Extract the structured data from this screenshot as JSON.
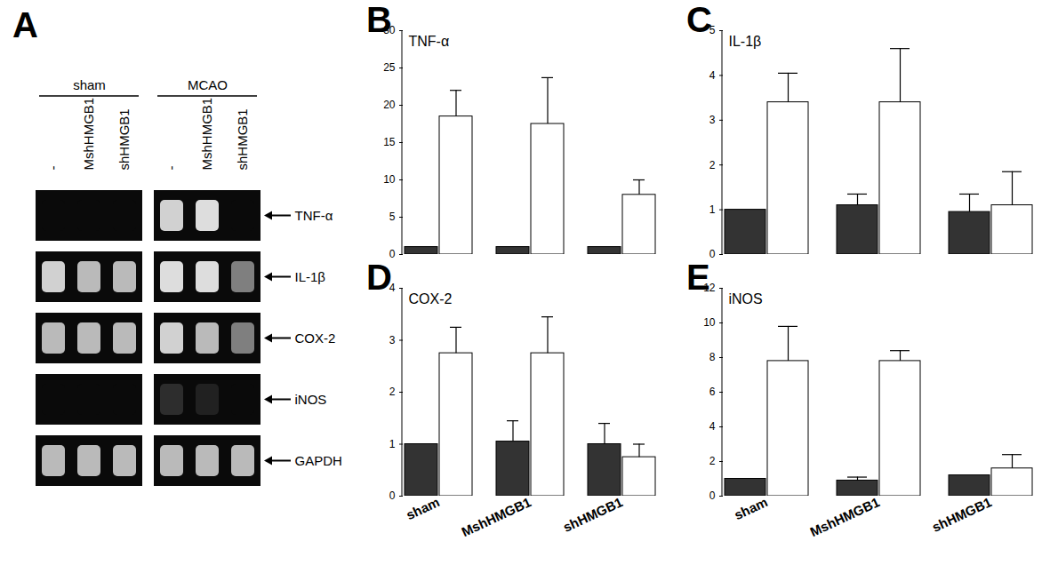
{
  "chart_data": [
    {
      "type": "gel",
      "panel": "A",
      "groups": [
        "sham",
        "MCAO"
      ],
      "lanes": [
        "-",
        "MshHMGB1",
        "shHMGB1"
      ],
      "rows": [
        "TNF-α",
        "IL-1β",
        "COX-2",
        "iNOS",
        "GAPDH"
      ],
      "intensity": [
        [
          [
            0,
            0,
            0
          ],
          [
            0.85,
            0.9,
            0
          ]
        ],
        [
          [
            0.85,
            0.75,
            0.75
          ],
          [
            0.9,
            0.9,
            0.5
          ]
        ],
        [
          [
            0.75,
            0.75,
            0.75
          ],
          [
            0.85,
            0.75,
            0.5
          ]
        ],
        [
          [
            0,
            0,
            0
          ],
          [
            0.15,
            0.1,
            0
          ]
        ],
        [
          [
            0.75,
            0.75,
            0.75
          ],
          [
            0.75,
            0.75,
            0.75
          ]
        ]
      ]
    },
    {
      "type": "bar",
      "panel": "B",
      "title": "TNF-α",
      "categories": [
        "sham",
        "MshHMGB1",
        "shHMGB1"
      ],
      "series": [
        {
          "name": "sham",
          "color": "#333333",
          "values": [
            1,
            1,
            1
          ],
          "errors": [
            null,
            null,
            null
          ]
        },
        {
          "name": "MCAO",
          "color": "#ffffff",
          "values": [
            18.5,
            17.5,
            8
          ],
          "errors": [
            3.5,
            6.2,
            2
          ]
        }
      ],
      "ylim": [
        0,
        30
      ],
      "yticks": [
        0,
        5,
        10,
        15,
        20,
        25,
        30
      ],
      "tick_labels": "y"
    },
    {
      "type": "bar",
      "panel": "C",
      "title": "IL-1β",
      "categories": [
        "sham",
        "MshHMGB1",
        "shHMGB1"
      ],
      "series": [
        {
          "name": "sham",
          "color": "#333333",
          "values": [
            1,
            1.1,
            0.95
          ],
          "errors": [
            null,
            0.25,
            0.4
          ]
        },
        {
          "name": "MCAO",
          "color": "#ffffff",
          "values": [
            3.4,
            3.4,
            1.1
          ],
          "errors": [
            0.65,
            1.2,
            0.75
          ]
        }
      ],
      "ylim": [
        0,
        5
      ],
      "yticks": [
        0,
        1,
        2,
        3,
        4,
        5
      ],
      "tick_labels": "y"
    },
    {
      "type": "bar",
      "panel": "D",
      "title": "COX-2",
      "categories": [
        "sham",
        "MshHMGB1",
        "shHMGB1"
      ],
      "series": [
        {
          "name": "sham",
          "color": "#333333",
          "values": [
            1,
            1.05,
            1
          ],
          "errors": [
            null,
            0.4,
            0.4
          ]
        },
        {
          "name": "MCAO",
          "color": "#ffffff",
          "values": [
            2.75,
            2.75,
            0.75
          ],
          "errors": [
            0.5,
            0.7,
            0.25
          ]
        }
      ],
      "ylim": [
        0,
        4
      ],
      "yticks": [
        0,
        1,
        2,
        3,
        4
      ]
    },
    {
      "type": "bar",
      "panel": "E",
      "title": "iNOS",
      "categories": [
        "sham",
        "MshHMGB1",
        "shHMGB1"
      ],
      "series": [
        {
          "name": "sham",
          "color": "#333333",
          "values": [
            1,
            0.9,
            1.2
          ],
          "errors": [
            null,
            0.2,
            null
          ]
        },
        {
          "name": "MCAO",
          "color": "#ffffff",
          "values": [
            7.8,
            7.8,
            1.6
          ],
          "errors": [
            2,
            0.6,
            0.8
          ]
        }
      ],
      "ylim": [
        0,
        12
      ],
      "yticks": [
        0,
        2,
        4,
        6,
        8,
        10,
        12
      ]
    }
  ]
}
